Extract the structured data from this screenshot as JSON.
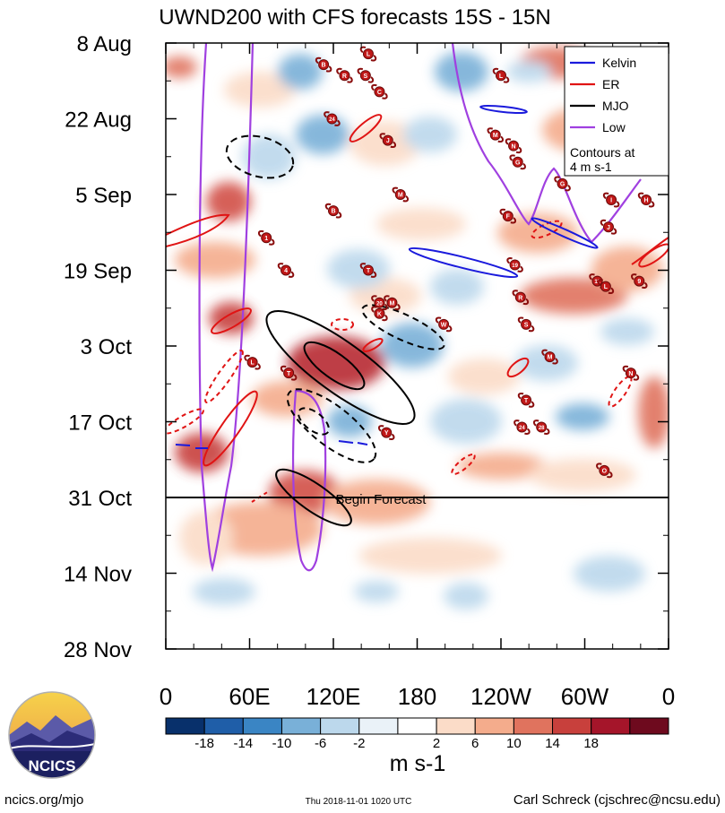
{
  "chart_data": {
    "type": "heatmap",
    "title": "UWND200 with CFS forecasts  15S - 15N",
    "x_tick_labels": [
      "0",
      "60E",
      "120E",
      "180",
      "120W",
      "60W",
      "0"
    ],
    "y_tick_labels": [
      "8 Aug",
      "22 Aug",
      "5 Sep",
      "19 Sep",
      "3 Oct",
      "17 Oct",
      "31 Oct",
      "14 Nov",
      "28 Nov"
    ],
    "xlim": [
      0,
      360
    ],
    "ylim_days": [
      0,
      112
    ],
    "forecast_line_day": 84,
    "forecast_label": "Begin Forecast",
    "legend": {
      "entries": [
        {
          "name": "Kelvin",
          "color": "#1a1adc"
        },
        {
          "name": "ER",
          "color": "#e01414"
        },
        {
          "name": "MJO",
          "color": "#000000"
        },
        {
          "name": "Low",
          "color": "#a040e0"
        }
      ],
      "note_line1": "Contours at",
      "note_line2": "4 m s-1"
    },
    "colorbar": {
      "labels": [
        "-18",
        "-14",
        "-10",
        "-6",
        "-2",
        "2",
        "6",
        "10",
        "14",
        "18"
      ],
      "colors": [
        "#08306b",
        "#1f5ea8",
        "#3a85c4",
        "#79b0d8",
        "#bcd8ec",
        "#eaf2f8",
        "#ffffff",
        "#fbdcc8",
        "#f4ac8c",
        "#e0735e",
        "#c8403c",
        "#a5152a",
        "#6e0a1e"
      ],
      "unit": "m s-1"
    },
    "storms": [
      {
        "label": "B",
        "lon": 113,
        "day": 4
      },
      {
        "label": "L",
        "lon": 145,
        "day": 2
      },
      {
        "label": "R",
        "lon": 128,
        "day": 6
      },
      {
        "label": "S",
        "lon": 143,
        "day": 6
      },
      {
        "label": "C",
        "lon": 153,
        "day": 9
      },
      {
        "label": "24",
        "lon": 119,
        "day": 14
      },
      {
        "label": "J",
        "lon": 159,
        "day": 18
      },
      {
        "label": "L",
        "lon": 240,
        "day": 6
      },
      {
        "label": "M",
        "lon": 236,
        "day": 17
      },
      {
        "label": "N",
        "lon": 249,
        "day": 19
      },
      {
        "label": "G",
        "lon": 252,
        "day": 22
      },
      {
        "label": "G",
        "lon": 284,
        "day": 26
      },
      {
        "label": "B",
        "lon": 120,
        "day": 31
      },
      {
        "label": "M",
        "lon": 168,
        "day": 28
      },
      {
        "label": "F",
        "lon": 245,
        "day": 32
      },
      {
        "label": "1",
        "lon": 72,
        "day": 36
      },
      {
        "label": "4",
        "lon": 86,
        "day": 42
      },
      {
        "label": "T",
        "lon": 145,
        "day": 42
      },
      {
        "label": "I",
        "lon": 319,
        "day": 29
      },
      {
        "label": "H",
        "lon": 344,
        "day": 29
      },
      {
        "label": "J",
        "lon": 317,
        "day": 34
      },
      {
        "label": "19",
        "lon": 250,
        "day": 41
      },
      {
        "label": "11",
        "lon": 309,
        "day": 44
      },
      {
        "label": "L",
        "lon": 315,
        "day": 45
      },
      {
        "label": "9",
        "lon": 339,
        "day": 44
      },
      {
        "label": "20",
        "lon": 153,
        "day": 48
      },
      {
        "label": "M",
        "lon": 162,
        "day": 48
      },
      {
        "label": "K",
        "lon": 153,
        "day": 50
      },
      {
        "label": "R",
        "lon": 254,
        "day": 47
      },
      {
        "label": "W",
        "lon": 199,
        "day": 52
      },
      {
        "label": "S",
        "lon": 258,
        "day": 52
      },
      {
        "label": "L",
        "lon": 62,
        "day": 59
      },
      {
        "label": "T",
        "lon": 88,
        "day": 61
      },
      {
        "label": "M",
        "lon": 275,
        "day": 58
      },
      {
        "label": "N",
        "lon": 333,
        "day": 61
      },
      {
        "label": "T",
        "lon": 258,
        "day": 66
      },
      {
        "label": "24",
        "lon": 255,
        "day": 71
      },
      {
        "label": "28",
        "lon": 269,
        "day": 71
      },
      {
        "label": "Y",
        "lon": 158,
        "day": 72
      },
      {
        "label": "O",
        "lon": 314,
        "day": 79
      }
    ]
  },
  "footer": {
    "logo_text": "NCICS",
    "website": "ncics.org/mjo",
    "timestamp": "Thu 2018-11-01 1020 UTC",
    "author": "Carl Schreck (cjschrec@ncsu.edu)"
  }
}
